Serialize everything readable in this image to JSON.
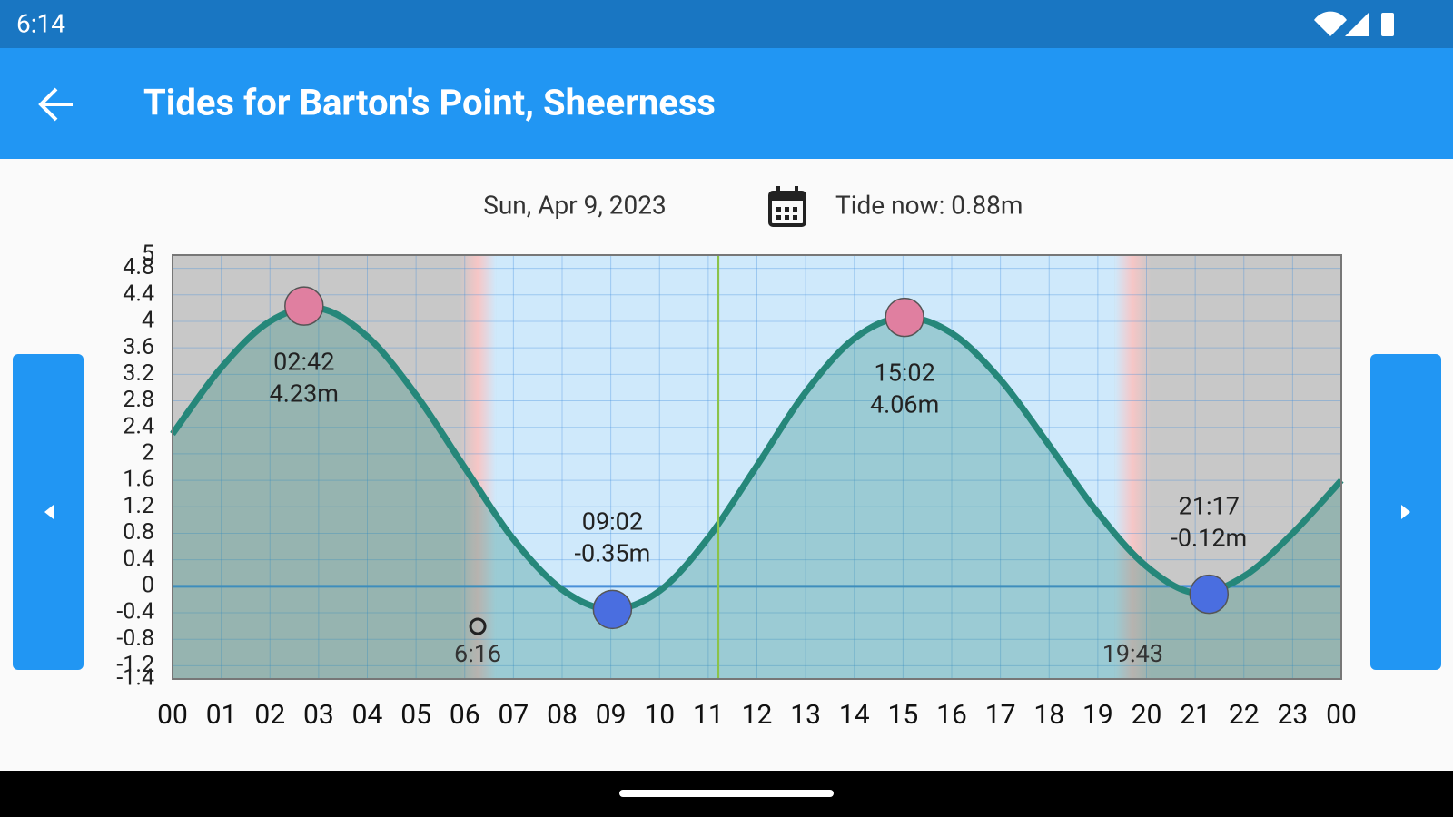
{
  "status_bar": {
    "time": "6:14"
  },
  "app_bar": {
    "title": "Tides for Barton's Point, Sheerness"
  },
  "date": "Sun, Apr 9, 2023",
  "tide_now": "Tide now: 0.88m",
  "chart_data": {
    "type": "line",
    "x": [
      0,
      1,
      2,
      3,
      4,
      5,
      6,
      7,
      8,
      9,
      10,
      11,
      12,
      13,
      14,
      15,
      16,
      17,
      18,
      19,
      20,
      21,
      22,
      23,
      24
    ],
    "series": [
      {
        "color": "#26877a",
        "values": [
          2.3,
          3.3,
          4.0,
          4.2,
          3.77,
          2.89,
          1.79,
          0.71,
          -0.05,
          -0.35,
          -0.07,
          0.73,
          1.82,
          2.93,
          3.74,
          4.06,
          3.82,
          3.12,
          2.13,
          1.11,
          0.3,
          -0.1,
          0.15,
          0.8,
          1.6
        ]
      }
    ],
    "extremes": {
      "x": [
        2.7,
        9.033,
        15.033,
        21.283
      ],
      "x_labels": [
        "02:42",
        "09:02",
        "15:02",
        "21:17"
      ],
      "values": [
        4.23,
        -0.35,
        4.06,
        -0.12
      ],
      "value_labels": [
        "4.23m",
        "-0.35m",
        "4.06m",
        "-0.12m"
      ],
      "colors": [
        "#e07fa0",
        "#4a6ee0",
        "#e07fa0",
        "#4a6ee0"
      ]
    },
    "sunrise": {
      "x": 6.267,
      "label": "6:16"
    },
    "sunset": {
      "x": 19.717,
      "label": "19:43"
    },
    "now_line": {
      "x": 11.2,
      "color": "#8bc34a"
    },
    "xlim": [
      0,
      24
    ],
    "xticks": [
      {
        "value": 0,
        "label": "00"
      },
      {
        "value": 1,
        "label": "01"
      },
      {
        "value": 2,
        "label": "02"
      },
      {
        "value": 3,
        "label": "03"
      },
      {
        "value": 4,
        "label": "04"
      },
      {
        "value": 5,
        "label": "05"
      },
      {
        "value": 6,
        "label": "06"
      },
      {
        "value": 7,
        "label": "07"
      },
      {
        "value": 8,
        "label": "08"
      },
      {
        "value": 9,
        "label": "09"
      },
      {
        "value": 10,
        "label": "10"
      },
      {
        "value": 11,
        "label": "11"
      },
      {
        "value": 12,
        "label": "12"
      },
      {
        "value": 13,
        "label": "13"
      },
      {
        "value": 14,
        "label": "14"
      },
      {
        "value": 15,
        "label": "15"
      },
      {
        "value": 16,
        "label": "16"
      },
      {
        "value": 17,
        "label": "17"
      },
      {
        "value": 18,
        "label": "18"
      },
      {
        "value": 19,
        "label": "19"
      },
      {
        "value": 20,
        "label": "20"
      },
      {
        "value": 21,
        "label": "21"
      },
      {
        "value": 22,
        "label": "22"
      },
      {
        "value": 23,
        "label": "23"
      },
      {
        "value": 24,
        "label": "00"
      }
    ],
    "ylim": [
      -1.4,
      5
    ],
    "yticks": [
      5,
      4.8,
      4.4,
      4,
      3.6,
      3.2,
      2.8,
      2.4,
      2,
      1.6,
      1.2,
      0.8,
      0.4,
      0,
      -0.4,
      -0.8,
      -1.2,
      -1.4
    ],
    "grid": true
  }
}
